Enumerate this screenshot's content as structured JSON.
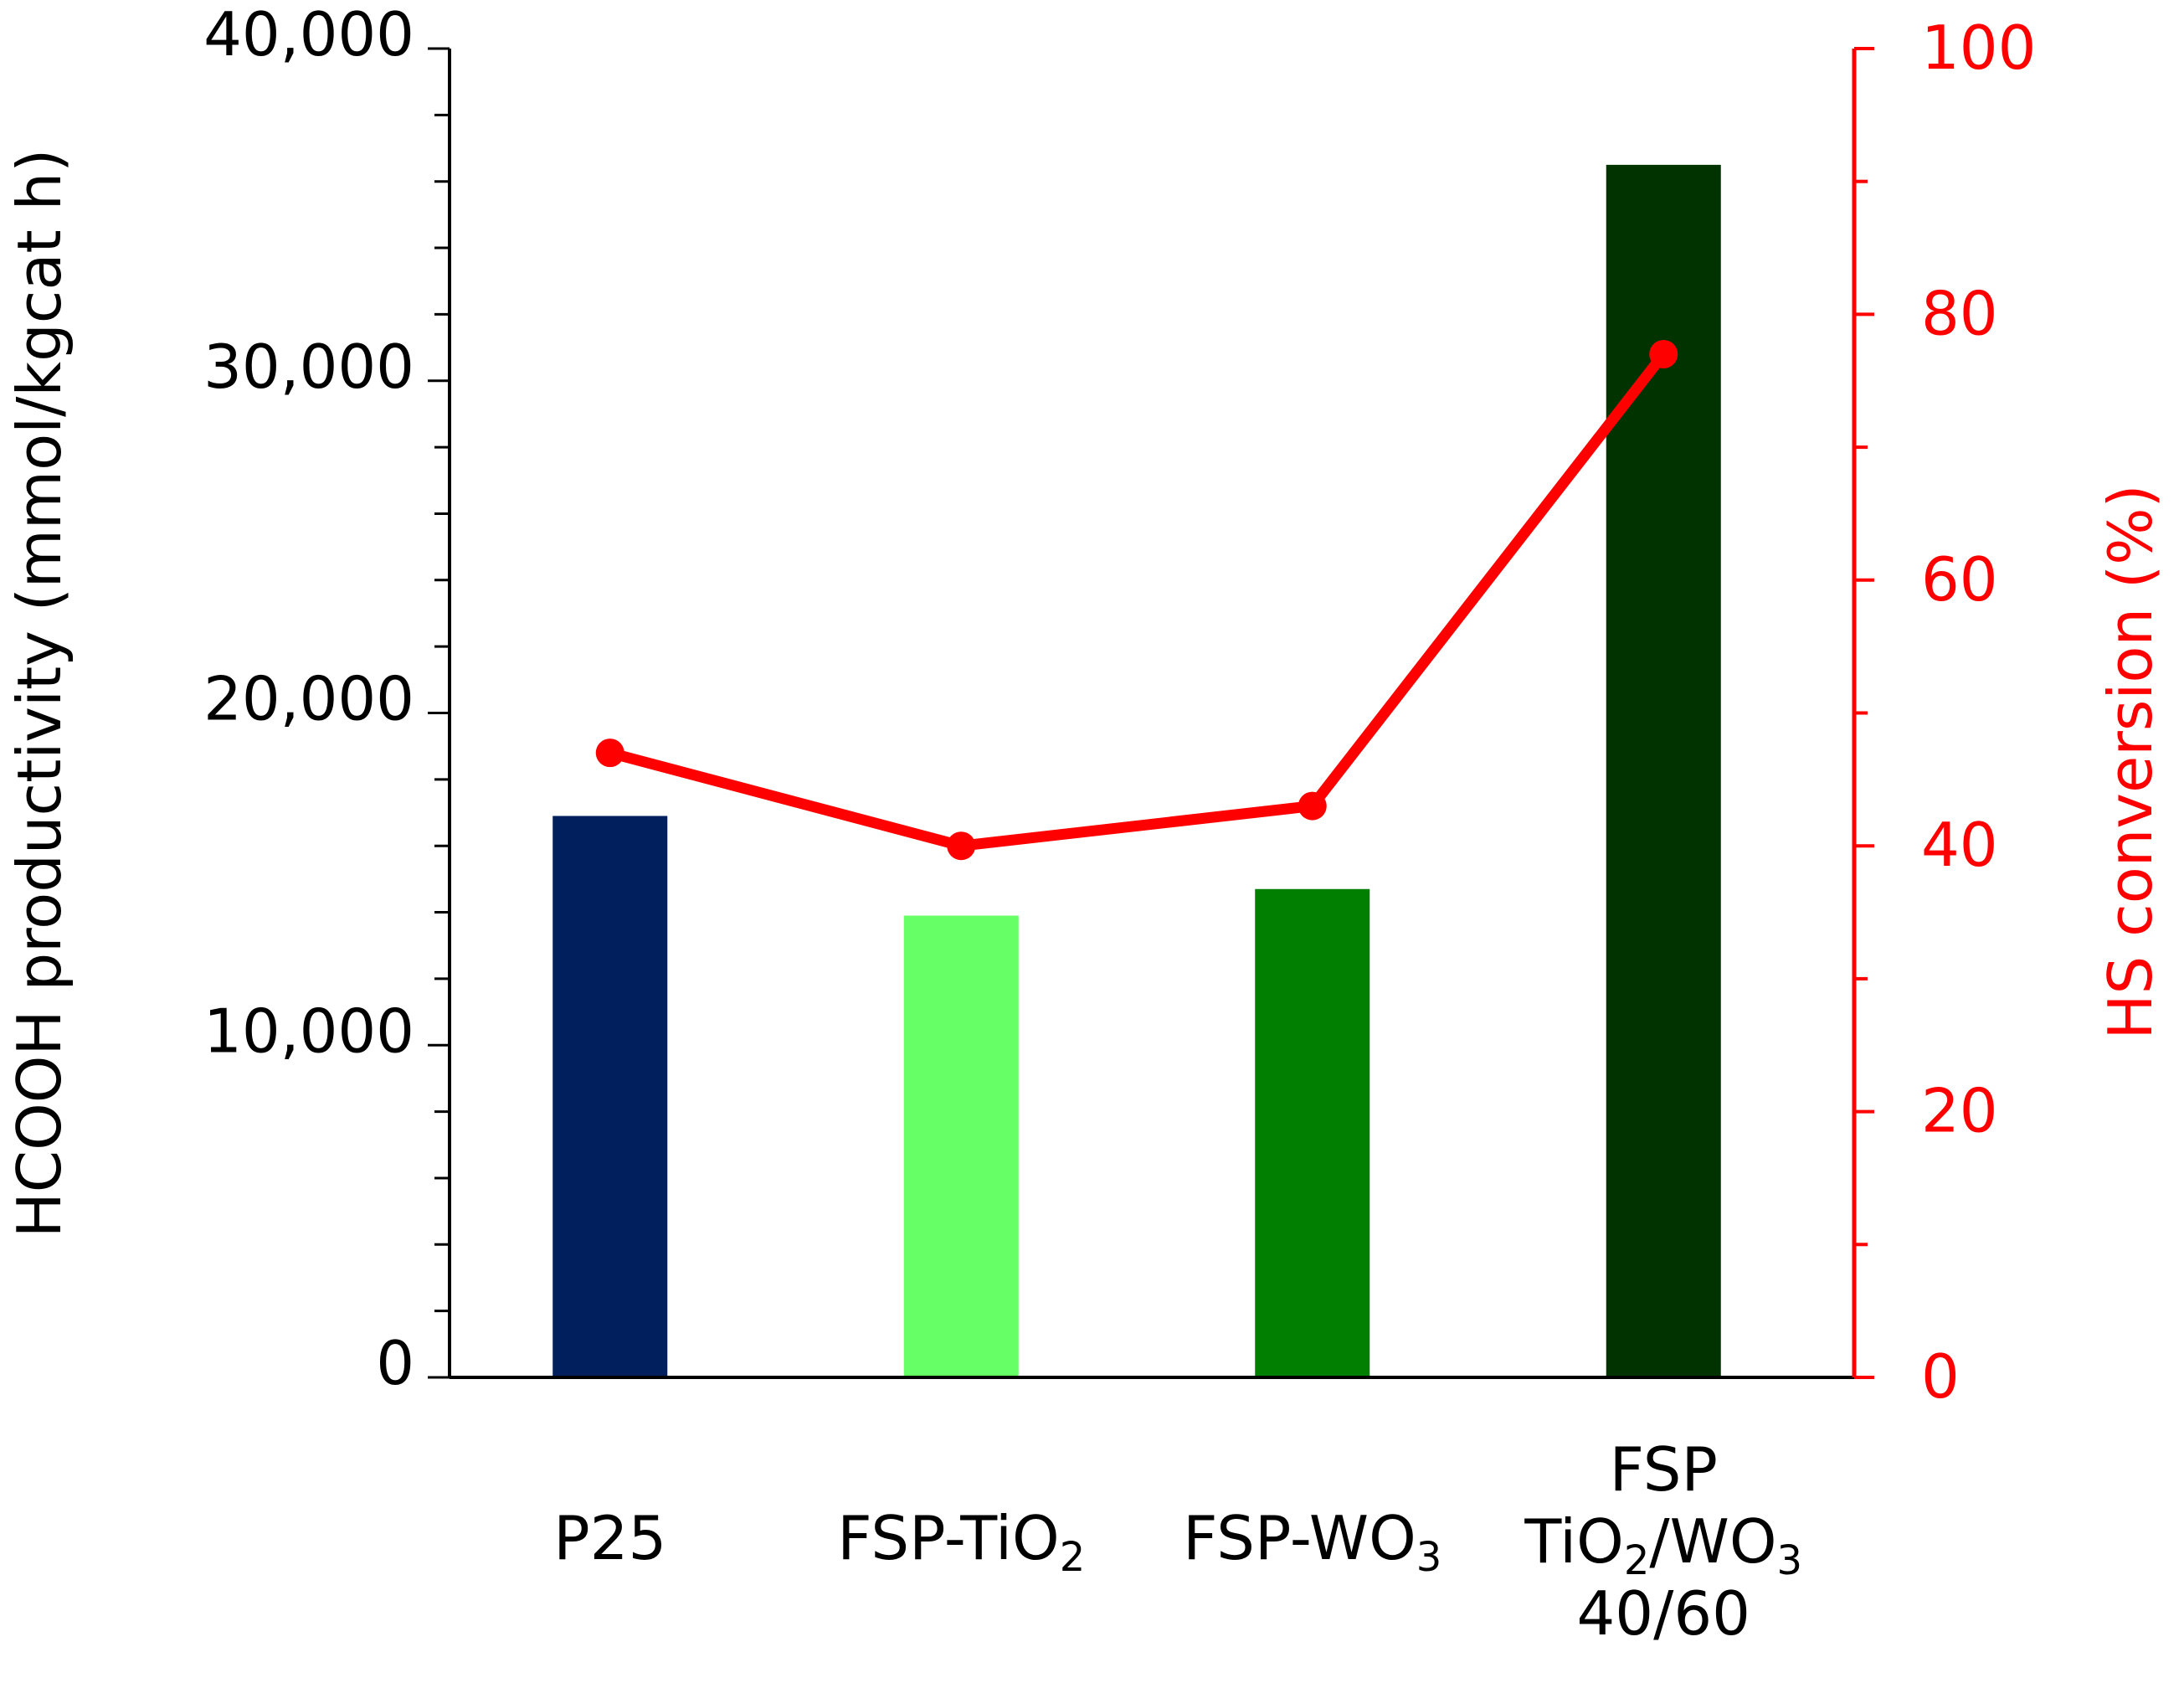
{
  "chart_data": {
    "type": "bar",
    "title": "",
    "categories": [
      {
        "main": "P25",
        "lines": [
          [
            {
              "t": "P25"
            }
          ]
        ]
      },
      {
        "main": "FSP-TiO2",
        "lines": [
          [
            {
              "t": "FSP-TiO"
            },
            {
              "t": "2",
              "sub": true
            }
          ]
        ]
      },
      {
        "main": "FSP-WO3",
        "lines": [
          [
            {
              "t": "FSP-WO"
            },
            {
              "t": "3",
              "sub": true
            }
          ]
        ]
      },
      {
        "main": "FSP TiO2/WO3 40/60",
        "lines": [
          [
            {
              "t": "FSP"
            }
          ],
          [
            {
              "t": "TiO"
            },
            {
              "t": "2",
              "sub": true
            },
            {
              "t": "/WO"
            },
            {
              "t": "3",
              "sub": true
            }
          ],
          [
            {
              "t": "40/60"
            }
          ]
        ]
      }
    ],
    "series": [
      {
        "name": "HCOOH productivity",
        "type": "bar",
        "axis": "left",
        "values": [
          16900,
          13900,
          14700,
          36500
        ],
        "colors": [
          "#001f5c",
          "#66ff66",
          "#007f00",
          "#003300"
        ]
      },
      {
        "name": "HS conversion",
        "type": "line",
        "axis": "right",
        "values": [
          47,
          40,
          43,
          77
        ],
        "color": "#ff0000"
      }
    ],
    "y_left": {
      "label": "HCOOH productivity (mmol/kgcat h)",
      "lim": [
        0,
        40000
      ],
      "ticks": [
        0,
        10000,
        20000,
        30000,
        40000
      ],
      "tick_labels": [
        "0",
        "10,000",
        "20,000",
        "30,000",
        "40,000"
      ],
      "minor_step": 2000
    },
    "y_right": {
      "label": "HS conversion (%)",
      "lim": [
        0,
        100
      ],
      "ticks": [
        0,
        20,
        40,
        60,
        80,
        100
      ],
      "tick_labels": [
        "0",
        "20",
        "40",
        "60",
        "80",
        "100"
      ],
      "minor_step": 10,
      "color": "#ff0000"
    },
    "xlabel": "",
    "grid": false,
    "legend": "none"
  }
}
